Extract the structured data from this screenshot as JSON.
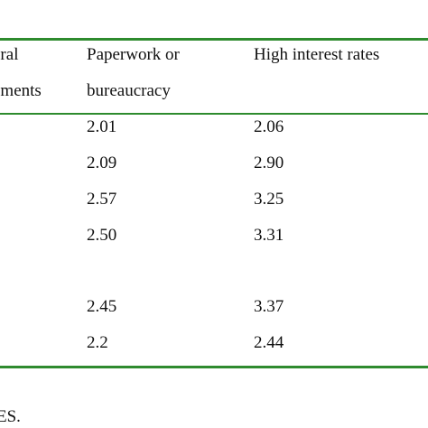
{
  "table": {
    "headers": {
      "col_a": [
        "eral",
        "ements"
      ],
      "col_b": [
        "Paperwork or",
        "bureaucracy"
      ],
      "col_c": [
        "High interest rates"
      ]
    },
    "rows": [
      {
        "b": "2.01",
        "c": "2.06"
      },
      {
        "b": "2.09",
        "c": "2.90"
      },
      {
        "b": "2.57",
        "c": "3.25"
      },
      {
        "b": "2.50",
        "c": "3.31"
      },
      {
        "b": "",
        "c": ""
      },
      {
        "b": "2.45",
        "c": "3.37"
      },
      {
        "b": "2.2",
        "c": "2.44"
      }
    ],
    "rule_color": "#2e8b2e"
  },
  "footnote": "ES."
}
